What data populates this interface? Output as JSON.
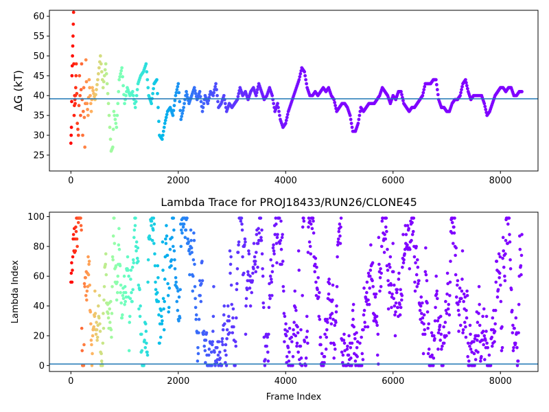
{
  "chart_data": [
    {
      "id": "top",
      "type": "scatter",
      "title": "",
      "xlabel": "",
      "ylabel": "ΔG (kT)",
      "xlim": [
        -400,
        8700
      ],
      "ylim": [
        21,
        61.5
      ],
      "xticks": [
        0,
        2000,
        4000,
        6000,
        8000
      ],
      "xtick_labels": [
        "0",
        "2000",
        "4000",
        "6000",
        "8000"
      ],
      "yticks": [
        25,
        30,
        35,
        40,
        45,
        50,
        55,
        60
      ],
      "ytick_labels": [
        "25",
        "30",
        "35",
        "40",
        "45",
        "50",
        "55",
        "60"
      ],
      "grid": false,
      "colormap": "rainbow (red at frame 0 to purple at late frames)",
      "reference_line": {
        "y": 39.2,
        "color": "#1f77b4"
      },
      "series": [
        {
          "points": [
            [
              0,
              28
            ],
            [
              10,
              32
            ],
            [
              20,
              45
            ],
            [
              30,
              50
            ],
            [
              40,
              55
            ],
            [
              50,
              61
            ],
            [
              60,
              35
            ],
            [
              70,
              40
            ],
            [
              80,
              38
            ],
            [
              90,
              42
            ],
            [
              100,
              48
            ],
            [
              120,
              33
            ],
            [
              140,
              30
            ],
            [
              160,
              45
            ],
            [
              180,
              35
            ],
            [
              200,
              48
            ],
            [
              220,
              30
            ],
            [
              240,
              42
            ],
            [
              260,
              27
            ],
            [
              280,
              49
            ],
            [
              300,
              38
            ],
            [
              320,
              35
            ],
            [
              340,
              44
            ],
            [
              360,
              40
            ],
            [
              380,
              36
            ],
            [
              400,
              42
            ],
            [
              450,
              39
            ],
            [
              500,
              44
            ],
            [
              550,
              50
            ],
            [
              600,
              42
            ],
            [
              650,
              48
            ],
            [
              700,
              38
            ],
            [
              750,
              26
            ],
            [
              780,
              27
            ],
            [
              800,
              36
            ],
            [
              850,
              32
            ],
            [
              900,
              44
            ],
            [
              950,
              47
            ],
            [
              1000,
              38
            ],
            [
              1050,
              42
            ],
            [
              1100,
              40
            ],
            [
              1150,
              41
            ],
            [
              1200,
              37
            ],
            [
              1250,
              43
            ],
            [
              1300,
              45
            ],
            [
              1350,
              46
            ],
            [
              1400,
              48
            ],
            [
              1450,
              40
            ],
            [
              1500,
              38
            ],
            [
              1550,
              43
            ],
            [
              1600,
              44
            ],
            [
              1650,
              30
            ],
            [
              1700,
              29
            ],
            [
              1750,
              33
            ],
            [
              1800,
              36
            ],
            [
              1850,
              37
            ],
            [
              1900,
              35
            ],
            [
              1950,
              40
            ],
            [
              2000,
              43
            ],
            [
              2050,
              34
            ],
            [
              2100,
              37
            ],
            [
              2150,
              41
            ],
            [
              2200,
              38
            ],
            [
              2250,
              40
            ],
            [
              2300,
              42
            ],
            [
              2350,
              39
            ],
            [
              2400,
              41
            ],
            [
              2450,
              36
            ],
            [
              2500,
              40
            ],
            [
              2550,
              38
            ],
            [
              2600,
              41
            ],
            [
              2650,
              40
            ],
            [
              2700,
              43
            ],
            [
              2750,
              37
            ],
            [
              2800,
              38
            ],
            [
              2850,
              40
            ],
            [
              2900,
              36
            ],
            [
              2950,
              38
            ],
            [
              3000,
              37
            ],
            [
              3050,
              38
            ],
            [
              3100,
              39
            ],
            [
              3150,
              42
            ],
            [
              3200,
              40
            ],
            [
              3250,
              41
            ],
            [
              3300,
              39
            ],
            [
              3350,
              41
            ],
            [
              3400,
              42
            ],
            [
              3450,
              40
            ],
            [
              3500,
              43
            ],
            [
              3550,
              41
            ],
            [
              3600,
              39
            ],
            [
              3650,
              40
            ],
            [
              3700,
              42
            ],
            [
              3750,
              40
            ],
            [
              3800,
              36
            ],
            [
              3850,
              38
            ],
            [
              3900,
              34
            ],
            [
              3950,
              32
            ],
            [
              4000,
              33
            ],
            [
              4050,
              36
            ],
            [
              4100,
              38
            ],
            [
              4150,
              40
            ],
            [
              4200,
              42
            ],
            [
              4250,
              44
            ],
            [
              4300,
              47
            ],
            [
              4350,
              46
            ],
            [
              4400,
              42
            ],
            [
              4450,
              40
            ],
            [
              4500,
              40
            ],
            [
              4550,
              41
            ],
            [
              4600,
              40
            ],
            [
              4650,
              41
            ],
            [
              4700,
              42
            ],
            [
              4750,
              41
            ],
            [
              4800,
              42
            ],
            [
              4850,
              40
            ],
            [
              4900,
              39
            ],
            [
              4950,
              36
            ],
            [
              5000,
              37
            ],
            [
              5050,
              38
            ],
            [
              5100,
              38
            ],
            [
              5150,
              37
            ],
            [
              5200,
              35
            ],
            [
              5250,
              31
            ],
            [
              5300,
              31
            ],
            [
              5350,
              33
            ],
            [
              5400,
              37
            ],
            [
              5450,
              36
            ],
            [
              5500,
              37
            ],
            [
              5550,
              38
            ],
            [
              5600,
              38
            ],
            [
              5650,
              38
            ],
            [
              5700,
              39
            ],
            [
              5750,
              40
            ],
            [
              5800,
              42
            ],
            [
              5850,
              41
            ],
            [
              5900,
              40
            ],
            [
              5950,
              38
            ],
            [
              6000,
              40
            ],
            [
              6050,
              39
            ],
            [
              6100,
              41
            ],
            [
              6150,
              41
            ],
            [
              6200,
              38
            ],
            [
              6250,
              37
            ],
            [
              6300,
              36
            ],
            [
              6350,
              37
            ],
            [
              6400,
              37
            ],
            [
              6450,
              38
            ],
            [
              6500,
              39
            ],
            [
              6550,
              40
            ],
            [
              6600,
              43
            ],
            [
              6650,
              43
            ],
            [
              6700,
              43
            ],
            [
              6750,
              44
            ],
            [
              6800,
              44
            ],
            [
              6850,
              39
            ],
            [
              6900,
              37
            ],
            [
              6950,
              37
            ],
            [
              7000,
              36
            ],
            [
              7050,
              36
            ],
            [
              7100,
              38
            ],
            [
              7150,
              39
            ],
            [
              7200,
              39
            ],
            [
              7250,
              40
            ],
            [
              7300,
              43
            ],
            [
              7350,
              44
            ],
            [
              7400,
              41
            ],
            [
              7450,
              39
            ],
            [
              7500,
              40
            ],
            [
              7550,
              40
            ],
            [
              7600,
              40
            ],
            [
              7650,
              40
            ],
            [
              7700,
              38
            ],
            [
              7750,
              35
            ],
            [
              7800,
              36
            ],
            [
              7850,
              38
            ],
            [
              7900,
              40
            ],
            [
              7950,
              41
            ],
            [
              8000,
              42
            ],
            [
              8050,
              42
            ],
            [
              8100,
              41
            ],
            [
              8150,
              42
            ],
            [
              8200,
              42
            ],
            [
              8250,
              40
            ],
            [
              8300,
              40
            ],
            [
              8350,
              41
            ],
            [
              8400,
              41
            ]
          ]
        }
      ]
    },
    {
      "id": "bottom",
      "type": "scatter",
      "title": "Lambda Trace for PROJ18433/RUN26/CLONE45",
      "xlabel": "Frame Index",
      "ylabel": "Lambda Index",
      "xlim": [
        -400,
        8700
      ],
      "ylim": [
        -4,
        103
      ],
      "xticks": [
        0,
        2000,
        4000,
        6000,
        8000
      ],
      "xtick_labels": [
        "0",
        "2000",
        "4000",
        "6000",
        "8000"
      ],
      "yticks": [
        0,
        20,
        40,
        60,
        80,
        100
      ],
      "ytick_labels": [
        "0",
        "20",
        "40",
        "60",
        "80",
        "100"
      ],
      "grid": false,
      "colormap": "rainbow (red at frame 0 to purple at late frames)",
      "reference_line": {
        "y": 1,
        "color": "#1f77b4"
      },
      "series": [
        {
          "description_of_values": "lambda index visited per frame, spanning 0-99 throughout the run",
          "x_range": [
            0,
            8400
          ],
          "y_range": [
            0,
            99
          ]
        }
      ]
    }
  ]
}
